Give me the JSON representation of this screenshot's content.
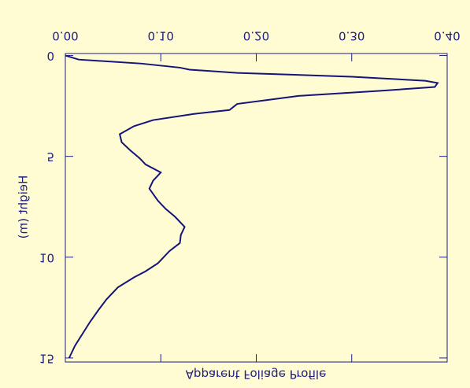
{
  "chart_data": {
    "type": "profile",
    "xlabel": "Apparent Foliage Profile",
    "ylabel": "Height (m)",
    "color": "#14147a",
    "heights": [
      0,
      0.2,
      0.4,
      0.6,
      0.7,
      0.86,
      1.05,
      1.25,
      1.36,
      1.56,
      1.75,
      2.0,
      2.4,
      2.7,
      2.9,
      3.2,
      3.5,
      3.9,
      4.3,
      4.7,
      5.1,
      5.4,
      5.8,
      6.2,
      6.6,
      7.2,
      7.6,
      8.0,
      8.5,
      8.9,
      9.3,
      9.7,
      10.3,
      10.7,
      11.0,
      11.5,
      12.1,
      12.6,
      13.2,
      13.8,
      14.4,
      15.0
    ],
    "values": [
      0.0,
      0.014,
      0.08,
      0.12,
      0.13,
      0.18,
      0.3,
      0.377,
      0.39,
      0.387,
      0.33,
      0.245,
      0.18,
      0.172,
      0.134,
      0.092,
      0.072,
      0.057,
      0.059,
      0.068,
      0.078,
      0.084,
      0.1,
      0.092,
      0.088,
      0.097,
      0.105,
      0.115,
      0.125,
      0.121,
      0.12,
      0.109,
      0.097,
      0.084,
      0.072,
      0.055,
      0.043,
      0.035,
      0.026,
      0.018,
      0.01,
      0.004
    ],
    "xlim": [
      0,
      0.4
    ],
    "xticks": [
      {
        "value": 0,
        "label": "0.00"
      },
      {
        "value": 0.1,
        "label": "0.10"
      },
      {
        "value": 0.2,
        "label": "0.20"
      },
      {
        "value": 0.3,
        "label": "0.30"
      },
      {
        "value": 0.4,
        "label": "0.40"
      }
    ],
    "ylim": [
      -0.1,
      15.2
    ],
    "yticks": [
      0,
      5,
      10,
      15
    ]
  }
}
